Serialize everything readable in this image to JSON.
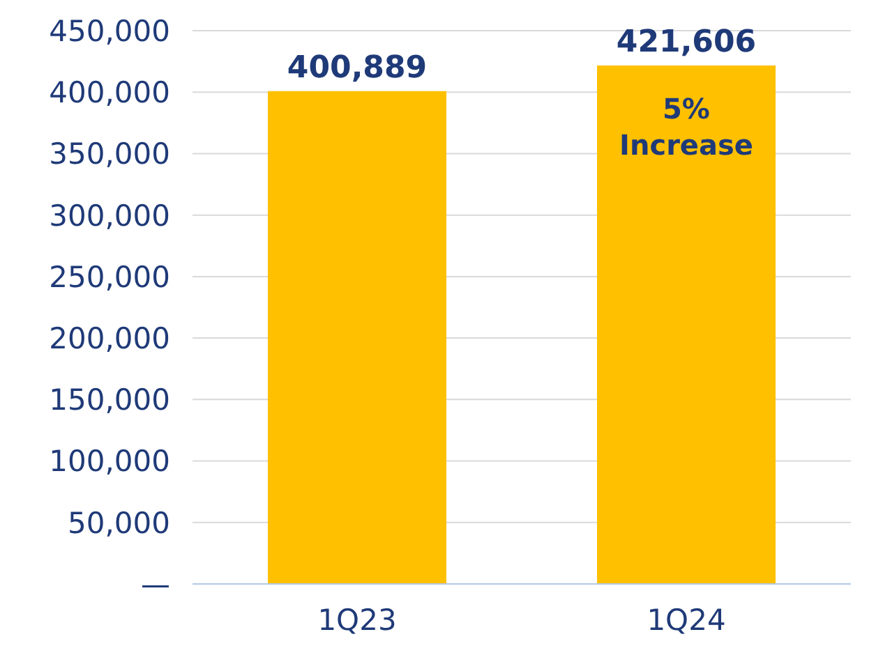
{
  "chart_data": {
    "type": "bar",
    "categories": [
      "1Q23",
      "1Q24"
    ],
    "values": [
      400889,
      421606
    ],
    "color": "#ffc000",
    "ylim": [
      0,
      450000
    ],
    "yticks": [
      {
        "value": 0,
        "label": "—"
      },
      {
        "value": 50000,
        "label": "50,000"
      },
      {
        "value": 100000,
        "label": "100,000"
      },
      {
        "value": 150000,
        "label": "150,000"
      },
      {
        "value": 200000,
        "label": "200,000"
      },
      {
        "value": 250000,
        "label": "250,000"
      },
      {
        "value": 300000,
        "label": "300,000"
      },
      {
        "value": 350000,
        "label": "350,000"
      },
      {
        "value": 400000,
        "label": "400,000"
      },
      {
        "value": 450000,
        "label": "450,000"
      }
    ],
    "grid": "y",
    "value_labels": [
      "400,889",
      "421,606"
    ],
    "annotations": [
      "5% Increase"
    ]
  }
}
